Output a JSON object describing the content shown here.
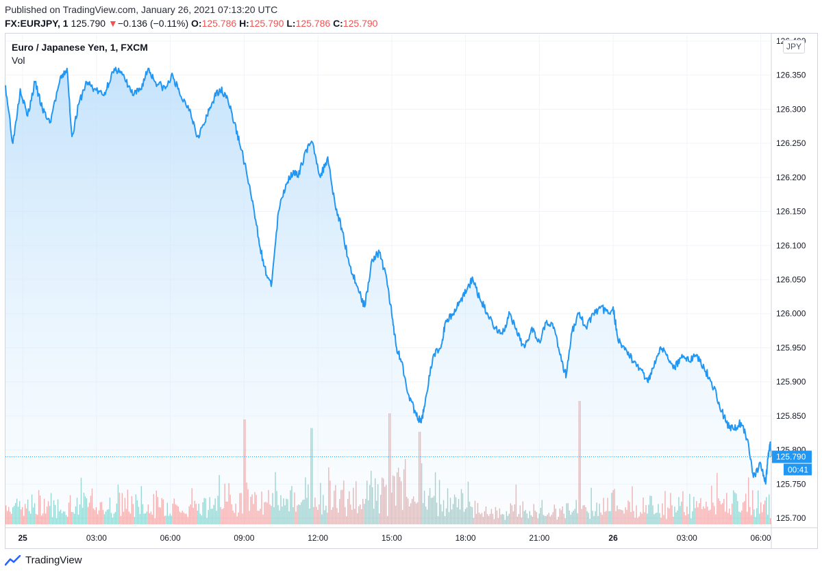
{
  "header": {
    "published": "Published on TradingView.com, January 26, 2021 07:13:20 UTC",
    "symbol": "FX:EURJPY, 1",
    "last": "125.790",
    "change_arrow": "▼",
    "change": "−0.136 (−0.11%)",
    "o_label": "O:",
    "o_value": "125.786",
    "h_label": "H:",
    "h_value": "125.790",
    "l_label": "L:",
    "l_value": "125.786",
    "c_label": "C:",
    "c_value": "125.790"
  },
  "pane": {
    "title": "Euro / Japanese Yen, 1, FXCM",
    "volume_label": "Vol",
    "currency": "JPY"
  },
  "footer": {
    "brand": "TradingView"
  },
  "colors": {
    "line": "#2196f3",
    "fill_top": "#bbdefb",
    "up_volume": "#26a69a",
    "down_volume": "#ef5350",
    "price_tag": "#2196f3"
  },
  "chart_data": {
    "type": "area",
    "title": "Euro / Japanese Yen, 1, FXCM",
    "ylabel": "JPY",
    "ylim": [
      125.69,
      126.41
    ],
    "y_ticks": [
      "126.400",
      "126.350",
      "126.300",
      "126.250",
      "126.200",
      "126.150",
      "126.100",
      "126.050",
      "126.000",
      "125.950",
      "125.900",
      "125.850",
      "125.800",
      "125.750",
      "125.700"
    ],
    "x_ticks": [
      {
        "h": 0.7,
        "label": "25"
      },
      {
        "h": 3.7,
        "label": "03:00"
      },
      {
        "h": 6.7,
        "label": "06:00"
      },
      {
        "h": 9.7,
        "label": "09:00"
      },
      {
        "h": 12.7,
        "label": "12:00"
      },
      {
        "h": 15.7,
        "label": "15:00"
      },
      {
        "h": 18.7,
        "label": "18:00"
      },
      {
        "h": 21.7,
        "label": "21:00"
      },
      {
        "h": 24.7,
        "label": "26"
      },
      {
        "h": 27.7,
        "label": "03:00"
      },
      {
        "h": 30.7,
        "label": "06:00"
      }
    ],
    "x_range_hours": [
      0,
      31.13
    ],
    "last_price": "125.790",
    "last_price_value": 125.79,
    "countdown": "00:41",
    "series": [
      {
        "name": "EURJPY close",
        "points": [
          [
            0.0,
            126.335
          ],
          [
            0.3,
            126.25
          ],
          [
            0.6,
            126.33
          ],
          [
            0.9,
            126.29
          ],
          [
            1.2,
            126.34
          ],
          [
            1.5,
            126.3
          ],
          [
            1.8,
            126.28
          ],
          [
            2.2,
            126.34
          ],
          [
            2.5,
            126.36
          ],
          [
            2.7,
            126.26
          ],
          [
            3.0,
            126.31
          ],
          [
            3.3,
            126.34
          ],
          [
            3.6,
            126.33
          ],
          [
            4.0,
            126.32
          ],
          [
            4.3,
            126.35
          ],
          [
            4.6,
            126.36
          ],
          [
            4.9,
            126.34
          ],
          [
            5.2,
            126.32
          ],
          [
            5.5,
            126.33
          ],
          [
            5.8,
            126.36
          ],
          [
            6.1,
            126.34
          ],
          [
            6.5,
            126.33
          ],
          [
            6.8,
            126.35
          ],
          [
            7.1,
            126.32
          ],
          [
            7.5,
            126.3
          ],
          [
            7.8,
            126.26
          ],
          [
            8.1,
            126.28
          ],
          [
            8.4,
            126.31
          ],
          [
            8.7,
            126.33
          ],
          [
            9.0,
            126.32
          ],
          [
            9.3,
            126.28
          ],
          [
            9.6,
            126.24
          ],
          [
            9.9,
            126.19
          ],
          [
            10.2,
            126.13
          ],
          [
            10.5,
            126.07
          ],
          [
            10.8,
            126.04
          ],
          [
            11.1,
            126.15
          ],
          [
            11.4,
            126.19
          ],
          [
            11.7,
            126.21
          ],
          [
            11.9,
            126.2
          ],
          [
            12.2,
            126.24
          ],
          [
            12.5,
            126.25
          ],
          [
            12.8,
            126.2
          ],
          [
            13.1,
            126.23
          ],
          [
            13.4,
            126.16
          ],
          [
            13.7,
            126.12
          ],
          [
            14.0,
            126.07
          ],
          [
            14.3,
            126.04
          ],
          [
            14.6,
            126.01
          ],
          [
            14.9,
            126.08
          ],
          [
            15.2,
            126.09
          ],
          [
            15.5,
            126.05
          ],
          [
            15.7,
            126.0
          ],
          [
            15.9,
            125.95
          ],
          [
            16.1,
            125.93
          ],
          [
            16.4,
            125.88
          ],
          [
            16.7,
            125.85
          ],
          [
            16.9,
            125.84
          ],
          [
            17.1,
            125.88
          ],
          [
            17.4,
            125.94
          ],
          [
            17.7,
            125.95
          ],
          [
            17.9,
            125.99
          ],
          [
            18.2,
            126.0
          ],
          [
            18.5,
            126.02
          ],
          [
            18.8,
            126.04
          ],
          [
            19.0,
            126.05
          ],
          [
            19.3,
            126.02
          ],
          [
            19.6,
            126.0
          ],
          [
            19.9,
            125.98
          ],
          [
            20.2,
            125.97
          ],
          [
            20.5,
            126.0
          ],
          [
            20.8,
            125.97
          ],
          [
            21.1,
            125.95
          ],
          [
            21.4,
            125.98
          ],
          [
            21.7,
            125.96
          ],
          [
            22.0,
            125.99
          ],
          [
            22.3,
            125.98
          ],
          [
            22.6,
            125.93
          ],
          [
            22.8,
            125.91
          ],
          [
            23.0,
            125.97
          ],
          [
            23.3,
            126.0
          ],
          [
            23.6,
            125.98
          ],
          [
            23.9,
            126.0
          ],
          [
            24.2,
            126.01
          ],
          [
            24.5,
            126.0
          ],
          [
            24.7,
            126.01
          ],
          [
            24.9,
            125.96
          ],
          [
            25.2,
            125.95
          ],
          [
            25.5,
            125.93
          ],
          [
            25.8,
            125.92
          ],
          [
            26.1,
            125.9
          ],
          [
            26.3,
            125.92
          ],
          [
            26.6,
            125.95
          ],
          [
            26.9,
            125.94
          ],
          [
            27.2,
            125.92
          ],
          [
            27.5,
            125.94
          ],
          [
            27.8,
            125.93
          ],
          [
            28.1,
            125.94
          ],
          [
            28.4,
            125.92
          ],
          [
            28.7,
            125.9
          ],
          [
            29.0,
            125.87
          ],
          [
            29.3,
            125.84
          ],
          [
            29.6,
            125.83
          ],
          [
            29.9,
            125.84
          ],
          [
            30.2,
            125.81
          ],
          [
            30.4,
            125.76
          ],
          [
            30.7,
            125.78
          ],
          [
            30.9,
            125.75
          ],
          [
            31.0,
            125.79
          ],
          [
            31.1,
            125.81
          ],
          [
            31.13,
            125.79
          ]
        ]
      }
    ],
    "volume_spikes": [
      {
        "h": 9.7,
        "v": 0.85
      },
      {
        "h": 12.4,
        "v": 0.78
      },
      {
        "h": 15.6,
        "v": 0.9
      },
      {
        "h": 16.8,
        "v": 0.75
      },
      {
        "h": 23.3,
        "v": 1.0
      }
    ]
  }
}
